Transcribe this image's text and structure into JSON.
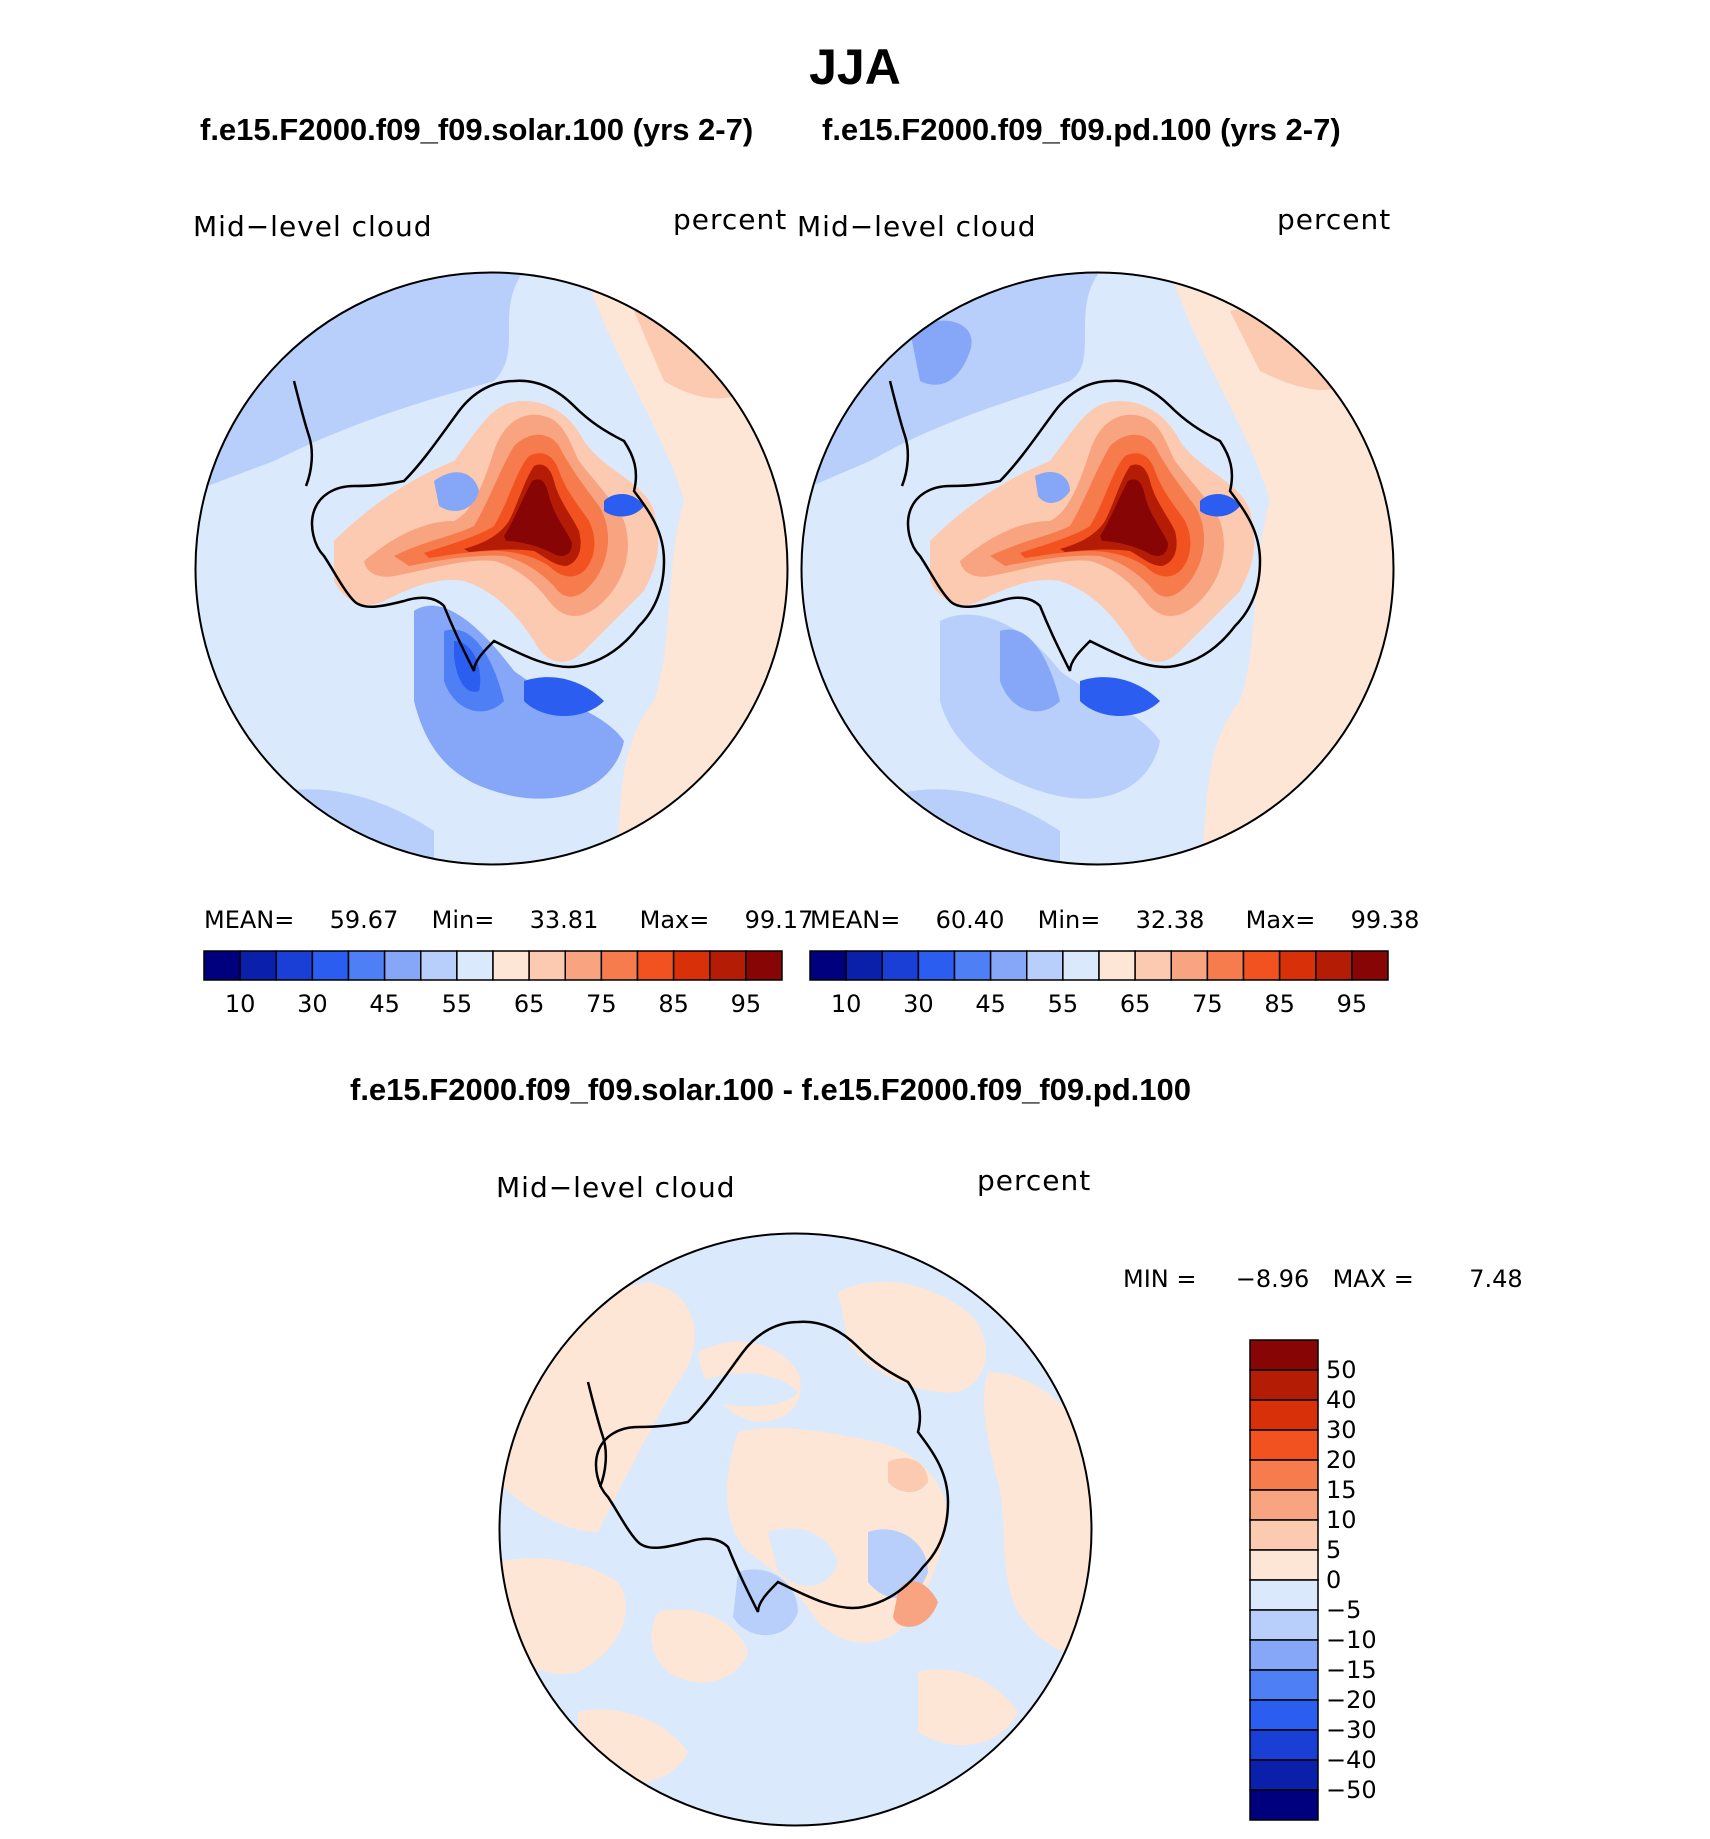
{
  "title": "JJA",
  "top_left_case": "f.e15.F2000.f09_f09.solar.100 (yrs 2-7)",
  "top_right_case": "f.e15.F2000.f09_f09.pd.100 (yrs 2-7)",
  "diff_title": "f.e15.F2000.f09_f09.solar.100 - f.e15.F2000.f09_f09.pd.100",
  "panels": {
    "left": {
      "variable": "Mid−level  cloud",
      "units": "percent",
      "mean_label": "MEAN=",
      "mean": "59.67",
      "min_label": "Min=",
      "min": "33.81",
      "max_label": "Max=",
      "max": "99.17"
    },
    "right": {
      "variable": "Mid−level  cloud",
      "units": "percent",
      "mean_label": "MEAN=",
      "mean": "60.40",
      "min_label": "Min=",
      "min": "32.38",
      "max_label": "Max=",
      "max": "99.38"
    },
    "diff": {
      "variable": "Mid−level  cloud",
      "units": "percent",
      "min_label": "MIN =",
      "min": "−8.96",
      "max_label": "MAX =",
      "max": "7.48"
    }
  },
  "colorbar_abs": {
    "colors": [
      "#00007f",
      "#0a1faa",
      "#1a3fd6",
      "#2b5ef0",
      "#4e7ff5",
      "#86a7f8",
      "#b7cffa",
      "#dbe9fc",
      "#fde6d6",
      "#fccab0",
      "#f8a481",
      "#f67c4e",
      "#f2521f",
      "#d8310a",
      "#b41c06",
      "#870505"
    ],
    "tick_labels": [
      "10",
      "30",
      "45",
      "55",
      "65",
      "75",
      "85",
      "95"
    ]
  },
  "colorbar_diff": {
    "colors_top_to_bottom": [
      "#870505",
      "#b41c06",
      "#d8310a",
      "#f2521f",
      "#f67c4e",
      "#f8a481",
      "#fccab0",
      "#fde6d6",
      "#dbe9fc",
      "#b7cffa",
      "#86a7f8",
      "#4e7ff5",
      "#2b5ef0",
      "#1a3fd6",
      "#0a1faa",
      "#00007f"
    ],
    "tick_labels": [
      "50",
      "40",
      "30",
      "20",
      "15",
      "10",
      "5",
      "0",
      "−5",
      "−10",
      "−15",
      "−20",
      "−30",
      "−40",
      "−50"
    ]
  }
}
